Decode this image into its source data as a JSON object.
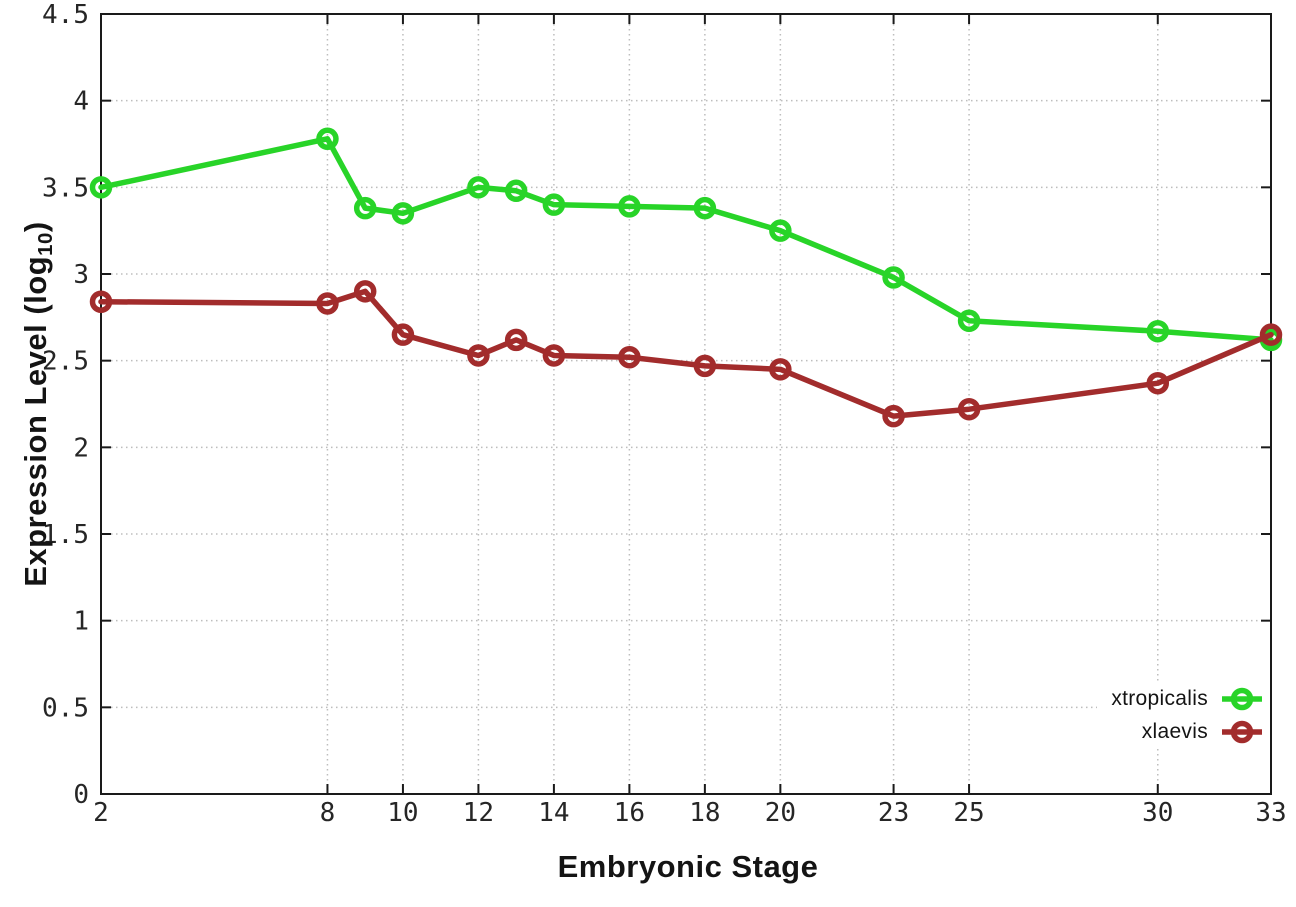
{
  "chart_data": {
    "type": "line",
    "title": "",
    "xlabel": "Embryonic Stage",
    "ylabel": "Expression Level (log10)",
    "ylabel_parts": {
      "main": "Expression Level (log",
      "sub": "10",
      "close": ")"
    },
    "xlim": [
      2,
      33
    ],
    "ylim": [
      0,
      4.5
    ],
    "x_ticks": [
      2,
      8,
      10,
      12,
      14,
      16,
      18,
      20,
      23,
      25,
      30,
      33
    ],
    "x_tick_labels": [
      "2",
      "8",
      "10",
      "12",
      "14",
      "16",
      "18",
      "20",
      "23",
      "25",
      "30",
      "33"
    ],
    "y_ticks": [
      0,
      0.5,
      1,
      1.5,
      2,
      2.5,
      3,
      3.5,
      4,
      4.5
    ],
    "y_tick_labels": [
      "0",
      "0.5",
      "1",
      "1.5",
      "2",
      "2.5",
      "3",
      "3.5",
      "4",
      "4.5"
    ],
    "grid": true,
    "legend_position": "bottom-right-inside",
    "colors": {
      "axis": "#1a1a1a",
      "grid": "#bdbdbd",
      "background": "#ffffff"
    },
    "x": [
      2,
      8,
      9,
      10,
      12,
      13,
      14,
      16,
      18,
      20,
      23,
      25,
      30,
      33
    ],
    "series": [
      {
        "name": "xtropicalis",
        "color": "#28d428",
        "values": [
          3.5,
          3.78,
          3.38,
          3.35,
          3.5,
          3.48,
          3.4,
          3.39,
          3.38,
          3.25,
          2.98,
          2.73,
          2.67,
          2.62
        ]
      },
      {
        "name": "xlaevis",
        "color": "#a22c2c",
        "values": [
          2.84,
          2.83,
          2.9,
          2.65,
          2.53,
          2.62,
          2.53,
          2.52,
          2.47,
          2.45,
          2.18,
          2.22,
          2.37,
          2.65
        ]
      }
    ]
  }
}
